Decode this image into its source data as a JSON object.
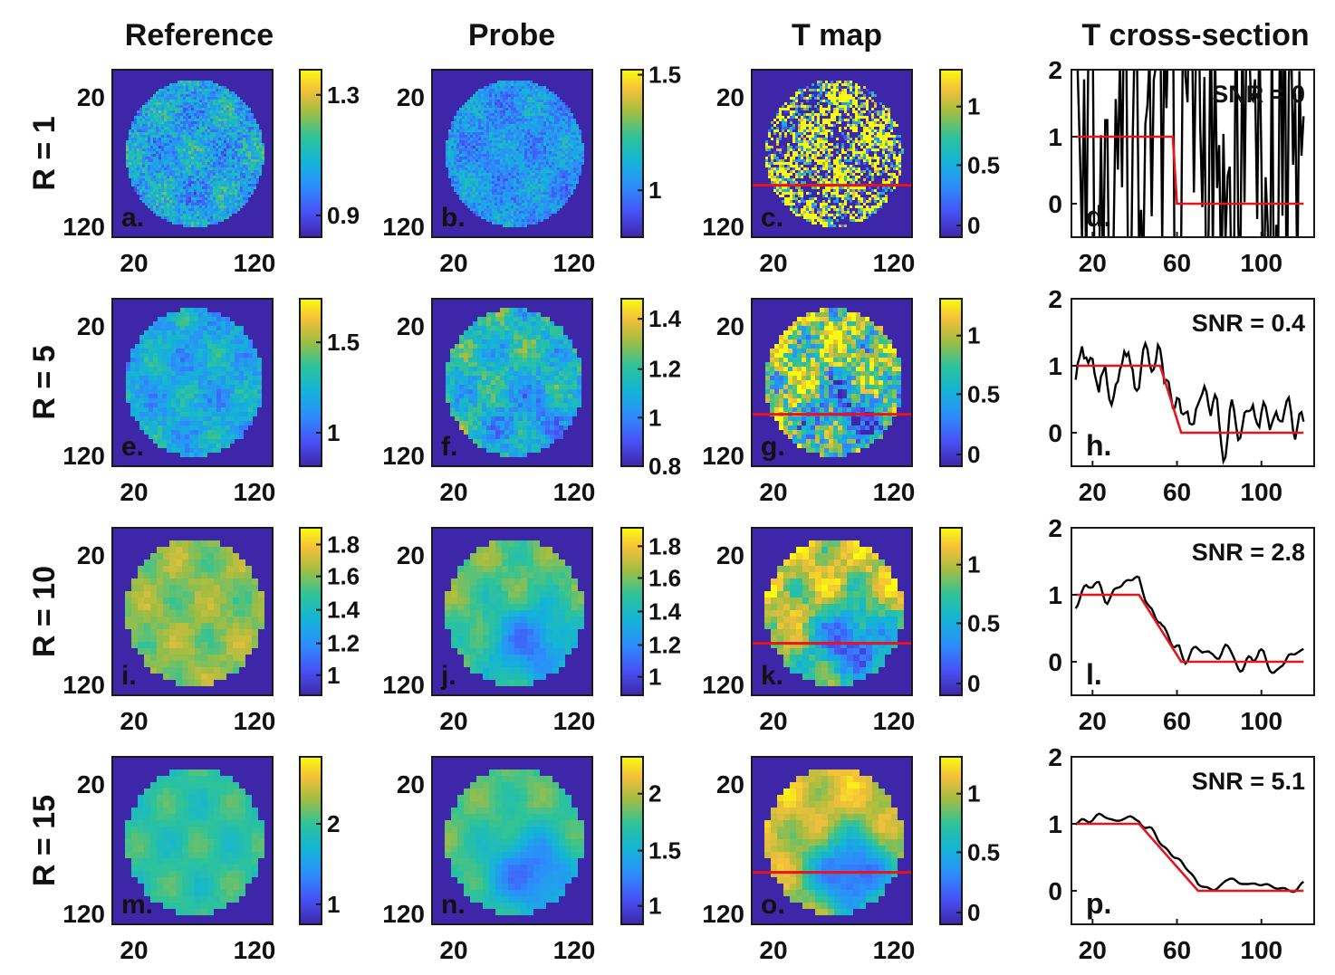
{
  "figure": {
    "column_titles": [
      "Reference",
      "Probe",
      "T map",
      "T cross-section"
    ],
    "colors": {
      "parula_low": "#3e26a8",
      "parula_high": "#f9fb0e",
      "threshold": "#e8131b",
      "measured": "#000000",
      "axes": "#1a1a1a"
    }
  },
  "chart_data": [
    {
      "type": "heatmap",
      "row": 0,
      "col": 0,
      "column_title": "Reference",
      "row_label": "R = 1",
      "panel_label": "a.",
      "xticks": [
        "20",
        "120"
      ],
      "yticks": [
        "20",
        "120"
      ],
      "colorbar_ticks": [
        {
          "label": "1.3",
          "frac": 0.85
        },
        {
          "label": "0.9",
          "frac": 0.13
        }
      ],
      "noise": 0.9,
      "smooth": 0,
      "gradient": 0,
      "base": 0.4,
      "contrast": 0.22,
      "has_line": false
    },
    {
      "type": "heatmap",
      "row": 0,
      "col": 1,
      "column_title": "Probe",
      "row_label": "R = 1",
      "panel_label": "b.",
      "xticks": [
        "20",
        "120"
      ],
      "yticks": [
        "20",
        "120"
      ],
      "colorbar_ticks": [
        {
          "label": "1.5",
          "frac": 0.97
        },
        {
          "label": "1",
          "frac": 0.28
        }
      ],
      "noise": 0.9,
      "smooth": 0,
      "gradient": 0,
      "base": 0.34,
      "contrast": 0.16,
      "has_line": false
    },
    {
      "type": "heatmap",
      "row": 0,
      "col": 2,
      "column_title": "T map",
      "row_label": "R = 1",
      "panel_label": "c.",
      "xticks": [
        "20",
        "120"
      ],
      "yticks": [
        "20",
        "120"
      ],
      "colorbar_ticks": [
        {
          "label": "1",
          "frac": 0.78
        },
        {
          "label": "0.5",
          "frac": 0.43
        },
        {
          "label": "0",
          "frac": 0.07
        }
      ],
      "noise": 1.0,
      "smooth": 0,
      "gradient": 0,
      "base": 0.5,
      "contrast": 1.4,
      "has_line": true
    },
    {
      "type": "line",
      "row": 0,
      "col": 3,
      "column_title": "T cross-section",
      "panel_label": "d.",
      "annotation": "SNR = 0",
      "xticks": [
        "20",
        "60",
        "100"
      ],
      "yticks": [
        "2",
        "1",
        "0"
      ],
      "xlim": [
        10,
        125
      ],
      "ylim": [
        -0.5,
        2
      ],
      "threshold": {
        "x": [
          12,
          58,
          60,
          120
        ],
        "y": [
          1,
          1,
          0,
          0
        ]
      },
      "noise_amplitude": 3.0,
      "smoothing": 0
    },
    {
      "type": "heatmap",
      "row": 1,
      "col": 0,
      "column_title": "Reference",
      "row_label": "R = 5",
      "panel_label": "e.",
      "xticks": [
        "20",
        "120"
      ],
      "yticks": [
        "20",
        "120"
      ],
      "colorbar_ticks": [
        {
          "label": "1.5",
          "frac": 0.74
        },
        {
          "label": "1",
          "frac": 0.2
        }
      ],
      "noise": 0.5,
      "smooth": 1,
      "gradient": 0,
      "base": 0.42,
      "contrast": 0.22,
      "has_line": false
    },
    {
      "type": "heatmap",
      "row": 1,
      "col": 1,
      "column_title": "Probe",
      "row_label": "R = 5",
      "panel_label": "f.",
      "xticks": [
        "20",
        "120"
      ],
      "yticks": [
        "20",
        "120"
      ],
      "colorbar_ticks": [
        {
          "label": "1.4",
          "frac": 0.88
        },
        {
          "label": "1.2",
          "frac": 0.58
        },
        {
          "label": "1",
          "frac": 0.29
        },
        {
          "label": "0.8",
          "frac": 0.0
        }
      ],
      "noise": 0.5,
      "smooth": 1,
      "gradient": 0.18,
      "base": 0.52,
      "contrast": 0.28,
      "has_line": false
    },
    {
      "type": "heatmap",
      "row": 1,
      "col": 2,
      "column_title": "T map",
      "row_label": "R = 5",
      "panel_label": "g.",
      "xticks": [
        "20",
        "120"
      ],
      "yticks": [
        "20",
        "120"
      ],
      "colorbar_ticks": [
        {
          "label": "1",
          "frac": 0.78
        },
        {
          "label": "0.5",
          "frac": 0.43
        },
        {
          "label": "0",
          "frac": 0.07
        }
      ],
      "noise": 0.6,
      "smooth": 1,
      "gradient": 0.5,
      "base": 0.78,
      "contrast": 0.55,
      "has_line": true
    },
    {
      "type": "line",
      "row": 1,
      "col": 3,
      "column_title": "T cross-section",
      "panel_label": "h.",
      "annotation": "SNR = 0.4",
      "xticks": [
        "20",
        "60",
        "100"
      ],
      "yticks": [
        "2",
        "1",
        "0"
      ],
      "xlim": [
        10,
        125
      ],
      "ylim": [
        -0.5,
        2
      ],
      "threshold": {
        "x": [
          12,
          52,
          62,
          120
        ],
        "y": [
          1,
          1,
          0,
          0
        ]
      },
      "noise_amplitude": 0.45,
      "smoothing": 2
    },
    {
      "type": "heatmap",
      "row": 2,
      "col": 0,
      "column_title": "Reference",
      "row_label": "R = 10",
      "panel_label": "i.",
      "xticks": [
        "20",
        "120"
      ],
      "yticks": [
        "20",
        "120"
      ],
      "colorbar_ticks": [
        {
          "label": "1.8",
          "frac": 0.9
        },
        {
          "label": "1.6",
          "frac": 0.71
        },
        {
          "label": "1.4",
          "frac": 0.51
        },
        {
          "label": "1.2",
          "frac": 0.31
        },
        {
          "label": "1",
          "frac": 0.12
        }
      ],
      "noise": 0.25,
      "smooth": 2,
      "gradient": 0,
      "base": 0.72,
      "contrast": 0.16,
      "has_line": false
    },
    {
      "type": "heatmap",
      "row": 2,
      "col": 1,
      "column_title": "Probe",
      "row_label": "R = 10",
      "panel_label": "j.",
      "xticks": [
        "20",
        "120"
      ],
      "yticks": [
        "20",
        "120"
      ],
      "colorbar_ticks": [
        {
          "label": "1.8",
          "frac": 0.89
        },
        {
          "label": "1.6",
          "frac": 0.7
        },
        {
          "label": "1.4",
          "frac": 0.5
        },
        {
          "label": "1.2",
          "frac": 0.3
        },
        {
          "label": "1",
          "frac": 0.11
        }
      ],
      "noise": 0.25,
      "smooth": 2,
      "gradient": 0.4,
      "base": 0.66,
      "contrast": 0.16,
      "has_line": false
    },
    {
      "type": "heatmap",
      "row": 2,
      "col": 2,
      "column_title": "T map",
      "row_label": "R = 10",
      "panel_label": "k.",
      "xticks": [
        "20",
        "120"
      ],
      "yticks": [
        "20",
        "120"
      ],
      "colorbar_ticks": [
        {
          "label": "1",
          "frac": 0.78
        },
        {
          "label": "0.5",
          "frac": 0.43
        },
        {
          "label": "0",
          "frac": 0.07
        }
      ],
      "noise": 0.35,
      "smooth": 2,
      "gradient": 0.65,
      "base": 0.82,
      "contrast": 0.3,
      "has_line": true
    },
    {
      "type": "line",
      "row": 2,
      "col": 3,
      "column_title": "T cross-section",
      "panel_label": "l.",
      "annotation": "SNR = 2.8",
      "xticks": [
        "20",
        "60",
        "100"
      ],
      "yticks": [
        "2",
        "1",
        "0"
      ],
      "xlim": [
        10,
        125
      ],
      "ylim": [
        -0.5,
        2
      ],
      "threshold": {
        "x": [
          12,
          42,
          62,
          120
        ],
        "y": [
          1,
          1,
          0,
          0
        ]
      },
      "noise_amplitude": 0.14,
      "smoothing": 3
    },
    {
      "type": "heatmap",
      "row": 3,
      "col": 0,
      "column_title": "Reference",
      "row_label": "R = 15",
      "panel_label": "m.",
      "xticks": [
        "20",
        "120"
      ],
      "yticks": [
        "20",
        "120"
      ],
      "colorbar_ticks": [
        {
          "label": "2",
          "frac": 0.6
        },
        {
          "label": "1",
          "frac": 0.12
        }
      ],
      "noise": 0.15,
      "smooth": 3,
      "gradient": 0,
      "base": 0.58,
      "contrast": 0.15,
      "has_line": false
    },
    {
      "type": "heatmap",
      "row": 3,
      "col": 1,
      "column_title": "Probe",
      "row_label": "R = 15",
      "panel_label": "n.",
      "xticks": [
        "20",
        "120"
      ],
      "yticks": [
        "20",
        "120"
      ],
      "colorbar_ticks": [
        {
          "label": "2",
          "frac": 0.78
        },
        {
          "label": "1.5",
          "frac": 0.44
        },
        {
          "label": "1",
          "frac": 0.11
        }
      ],
      "noise": 0.15,
      "smooth": 3,
      "gradient": 0.42,
      "base": 0.64,
      "contrast": 0.14,
      "has_line": false
    },
    {
      "type": "heatmap",
      "row": 3,
      "col": 2,
      "column_title": "T map",
      "row_label": "R = 15",
      "panel_label": "o.",
      "xticks": [
        "20",
        "120"
      ],
      "yticks": [
        "20",
        "120"
      ],
      "colorbar_ticks": [
        {
          "label": "1",
          "frac": 0.78
        },
        {
          "label": "0.5",
          "frac": 0.43
        },
        {
          "label": "0",
          "frac": 0.07
        }
      ],
      "noise": 0.2,
      "smooth": 3,
      "gradient": 0.7,
      "base": 0.85,
      "contrast": 0.2,
      "has_line": true
    },
    {
      "type": "line",
      "row": 3,
      "col": 3,
      "column_title": "T cross-section",
      "panel_label": "p.",
      "annotation": "SNR = 5.1",
      "xticks": [
        "20",
        "60",
        "100"
      ],
      "yticks": [
        "2",
        "1",
        "0"
      ],
      "xlim": [
        10,
        125
      ],
      "ylim": [
        -0.5,
        2
      ],
      "threshold": {
        "x": [
          12,
          42,
          70,
          120
        ],
        "y": [
          1,
          1,
          0,
          0
        ]
      },
      "noise_amplitude": 0.06,
      "smoothing": 4
    }
  ]
}
